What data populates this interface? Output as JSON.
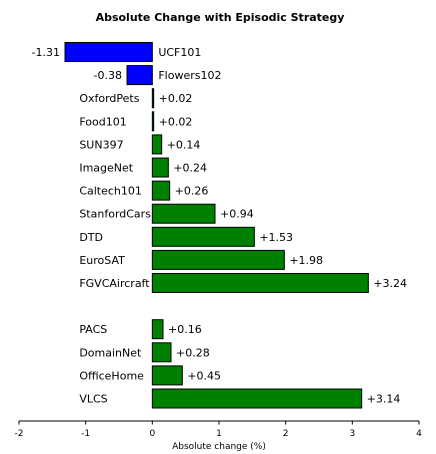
{
  "chart_data": {
    "type": "bar",
    "orientation": "horizontal",
    "title": "Absolute Change with Episodic Strategy",
    "xlabel": "Absolute change (%)",
    "ylabel": "",
    "xlim": [
      -2,
      4
    ],
    "xticks": [
      -2,
      -1,
      0,
      1,
      2,
      3,
      4
    ],
    "grid": false,
    "positive_color": "#008000",
    "negative_color": "#0000ff",
    "groups": [
      {
        "categories": [
          "UCF101",
          "Flowers102",
          "OxfordPets",
          "Food101",
          "SUN397",
          "ImageNet",
          "Caltech101",
          "StanfordCars",
          "DTD",
          "EuroSAT",
          "FGVCAircraft"
        ],
        "values": [
          -1.31,
          -0.38,
          0.02,
          0.02,
          0.14,
          0.24,
          0.26,
          0.94,
          1.53,
          1.98,
          3.24
        ],
        "value_labels": [
          "-1.31",
          "-0.38",
          "+0.02",
          "+0.02",
          "+0.14",
          "+0.24",
          "+0.26",
          "+0.94",
          "+1.53",
          "+1.98",
          "+3.24"
        ]
      },
      {
        "categories": [
          "PACS",
          "DomainNet",
          "OfficeHome",
          "VLCS"
        ],
        "values": [
          0.16,
          0.28,
          0.45,
          3.14
        ],
        "value_labels": [
          "+0.16",
          "+0.28",
          "+0.45",
          "+3.14"
        ]
      }
    ]
  }
}
